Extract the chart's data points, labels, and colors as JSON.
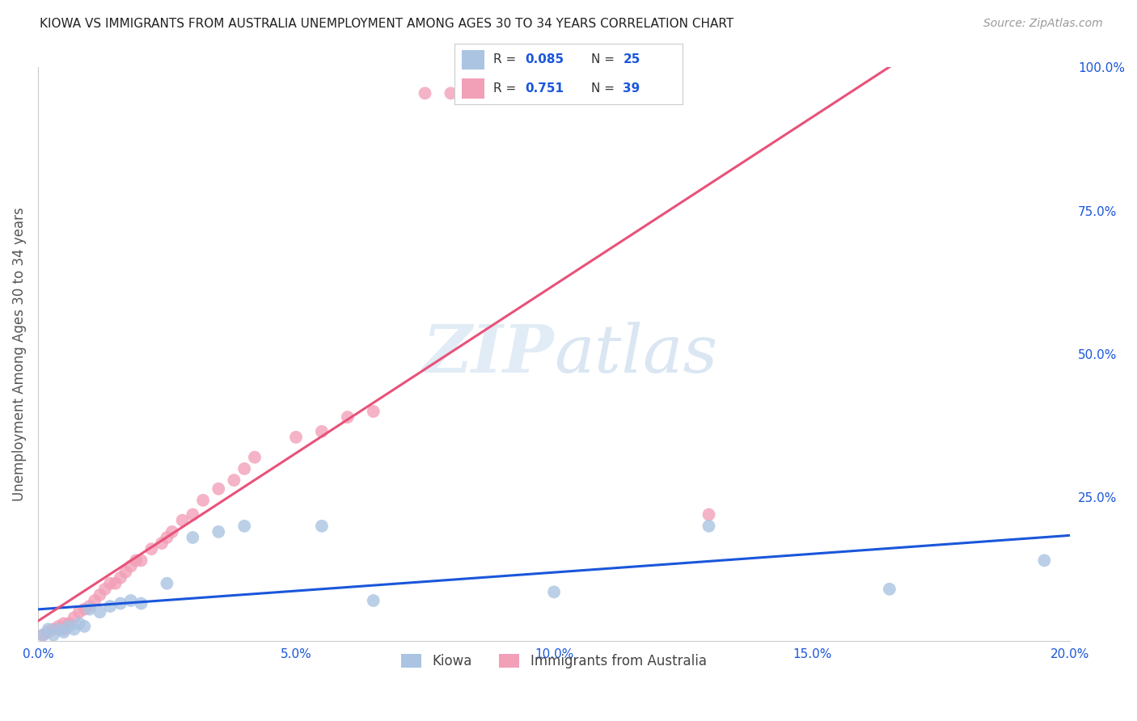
{
  "title": "KIOWA VS IMMIGRANTS FROM AUSTRALIA UNEMPLOYMENT AMONG AGES 30 TO 34 YEARS CORRELATION CHART",
  "source": "Source: ZipAtlas.com",
  "ylabel_left": "Unemployment Among Ages 30 to 34 years",
  "xlim": [
    0.0,
    0.2
  ],
  "ylim": [
    0.0,
    1.0
  ],
  "kiowa_R": 0.085,
  "kiowa_N": 25,
  "aus_R": 0.751,
  "aus_N": 39,
  "kiowa_color": "#aac4e2",
  "aus_color": "#f2a0b8",
  "kiowa_line_color": "#1a56db",
  "aus_line_color": "#e8527a",
  "legend_text_color": "#1a56db",
  "kiowa_x": [
    0.001,
    0.002,
    0.003,
    0.004,
    0.005,
    0.006,
    0.007,
    0.008,
    0.009,
    0.01,
    0.012,
    0.014,
    0.016,
    0.018,
    0.02,
    0.025,
    0.03,
    0.035,
    0.04,
    0.055,
    0.065,
    0.1,
    0.13,
    0.165,
    0.195
  ],
  "kiowa_y": [
    0.01,
    0.02,
    0.01,
    0.02,
    0.015,
    0.025,
    0.02,
    0.03,
    0.025,
    0.055,
    0.05,
    0.06,
    0.065,
    0.07,
    0.065,
    0.1,
    0.18,
    0.19,
    0.2,
    0.2,
    0.07,
    0.085,
    0.2,
    0.09,
    0.14
  ],
  "aus_x": [
    0.001,
    0.002,
    0.003,
    0.004,
    0.005,
    0.005,
    0.006,
    0.007,
    0.008,
    0.009,
    0.01,
    0.011,
    0.012,
    0.013,
    0.014,
    0.015,
    0.016,
    0.017,
    0.018,
    0.019,
    0.02,
    0.022,
    0.024,
    0.025,
    0.026,
    0.028,
    0.03,
    0.032,
    0.035,
    0.038,
    0.04,
    0.042,
    0.05,
    0.055,
    0.06,
    0.065,
    0.075,
    0.08,
    0.13
  ],
  "aus_y": [
    0.01,
    0.015,
    0.02,
    0.025,
    0.02,
    0.03,
    0.03,
    0.04,
    0.05,
    0.055,
    0.06,
    0.07,
    0.08,
    0.09,
    0.1,
    0.1,
    0.11,
    0.12,
    0.13,
    0.14,
    0.14,
    0.16,
    0.17,
    0.18,
    0.19,
    0.21,
    0.22,
    0.245,
    0.265,
    0.28,
    0.3,
    0.32,
    0.355,
    0.365,
    0.39,
    0.4,
    0.955,
    0.955,
    0.22
  ],
  "watermark_zip": "ZIP",
  "watermark_atlas": "atlas",
  "background_color": "#ffffff",
  "grid_color": "#d8d8d8",
  "xtick_vals": [
    0.0,
    0.025,
    0.05,
    0.075,
    0.1,
    0.125,
    0.15,
    0.175,
    0.2
  ],
  "xtick_labels": [
    "0.0%",
    "",
    "5.0%",
    "",
    "10.0%",
    "",
    "15.0%",
    "",
    "20.0%"
  ],
  "ytick_vals": [
    0.0,
    0.25,
    0.5,
    0.75,
    1.0
  ],
  "ytick_labels": [
    "",
    "25.0%",
    "50.0%",
    "75.0%",
    "100.0%"
  ]
}
